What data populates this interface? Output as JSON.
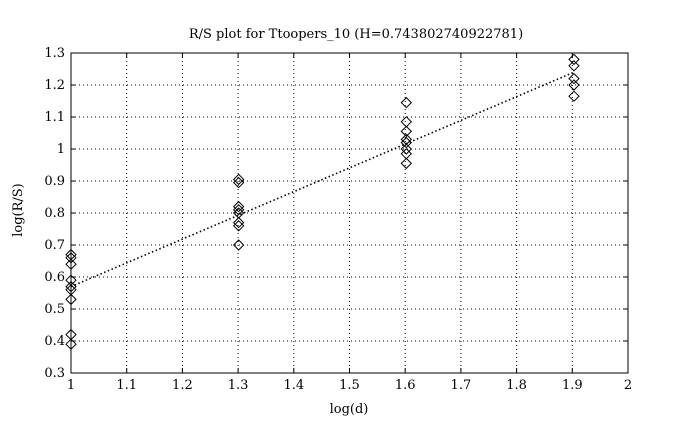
{
  "chart_data": {
    "type": "scatter",
    "title": "R/S plot for Ttoopers_10 (H=0.743802740922781)",
    "xlabel": "log(d)",
    "ylabel": "log(R/S)",
    "xlim": [
      1,
      2
    ],
    "ylim": [
      0.3,
      1.3
    ],
    "grid": true,
    "grid_style": "dotted",
    "xticks": [
      "1",
      "1.1",
      "1.2",
      "1.3",
      "1.4",
      "1.5",
      "1.6",
      "1.7",
      "1.8",
      "1.9",
      "2"
    ],
    "yticks": [
      "0.3",
      "0.4",
      "0.5",
      "0.6",
      "0.7",
      "0.8",
      "0.9",
      "1",
      "1.1",
      "1.2",
      "1.3"
    ],
    "series": [
      {
        "marker": "diamond",
        "points": [
          {
            "x": 1.0,
            "y": 0.67
          },
          {
            "x": 1.0,
            "y": 0.66
          },
          {
            "x": 1.0,
            "y": 0.64
          },
          {
            "x": 1.0,
            "y": 0.59
          },
          {
            "x": 1.0,
            "y": 0.57
          },
          {
            "x": 1.0,
            "y": 0.56
          },
          {
            "x": 1.0,
            "y": 0.53
          },
          {
            "x": 1.0,
            "y": 0.42
          },
          {
            "x": 1.0,
            "y": 0.39
          },
          {
            "x": 1.301,
            "y": 0.905
          },
          {
            "x": 1.301,
            "y": 0.895
          },
          {
            "x": 1.301,
            "y": 0.82
          },
          {
            "x": 1.301,
            "y": 0.81
          },
          {
            "x": 1.301,
            "y": 0.8
          },
          {
            "x": 1.301,
            "y": 0.77
          },
          {
            "x": 1.301,
            "y": 0.76
          },
          {
            "x": 1.301,
            "y": 0.7
          },
          {
            "x": 1.602,
            "y": 1.145
          },
          {
            "x": 1.602,
            "y": 1.085
          },
          {
            "x": 1.602,
            "y": 1.055
          },
          {
            "x": 1.602,
            "y": 1.03
          },
          {
            "x": 1.602,
            "y": 1.02
          },
          {
            "x": 1.602,
            "y": 1.0
          },
          {
            "x": 1.602,
            "y": 0.985
          },
          {
            "x": 1.602,
            "y": 0.955
          },
          {
            "x": 1.903,
            "y": 1.28
          },
          {
            "x": 1.903,
            "y": 1.26
          },
          {
            "x": 1.903,
            "y": 1.22
          },
          {
            "x": 1.903,
            "y": 1.2
          },
          {
            "x": 1.903,
            "y": 1.165
          }
        ]
      },
      {
        "type": "line",
        "line_style": "dotted",
        "x": [
          1.0,
          1.903
        ],
        "y": [
          0.57,
          1.24
        ]
      }
    ]
  }
}
